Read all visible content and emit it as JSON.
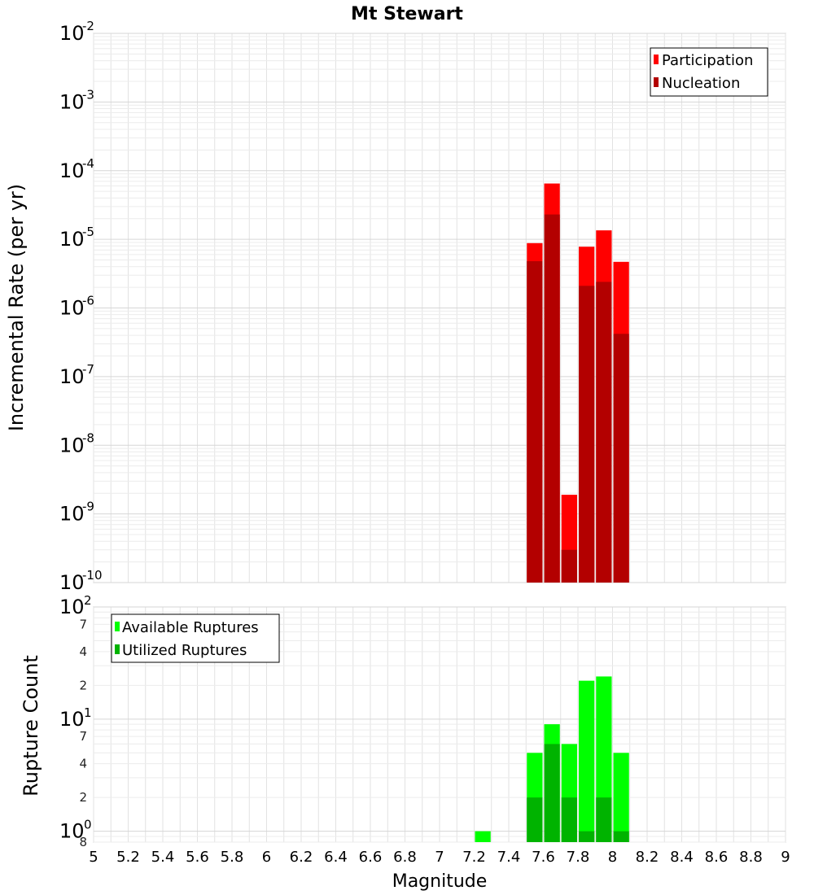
{
  "title": "Mt Stewart",
  "xlabel": "Magnitude",
  "xlim": [
    5,
    9
  ],
  "x_ticks": [
    "5",
    "5.2",
    "5.4",
    "5.6",
    "5.8",
    "6",
    "6.2",
    "6.4",
    "6.6",
    "6.8",
    "7",
    "7.2",
    "7.4",
    "7.6",
    "7.8",
    "8",
    "8.2",
    "8.4",
    "8.6",
    "8.8",
    "9"
  ],
  "colors": {
    "participation": "#ff0000",
    "nucleation": "#b30000",
    "available": "#00ff00",
    "utilized": "#00b300"
  },
  "chart_data": [
    {
      "type": "bar",
      "panel": "top",
      "ylabel": "Incremental Rate (per yr)",
      "yscale": "log",
      "ylim": [
        1e-10,
        0.01
      ],
      "y_ticks": [
        {
          "base": "10",
          "exp": "-2"
        },
        {
          "base": "10",
          "exp": "-3"
        },
        {
          "base": "10",
          "exp": "-4"
        },
        {
          "base": "10",
          "exp": "-5"
        },
        {
          "base": "10",
          "exp": "-6"
        },
        {
          "base": "10",
          "exp": "-7"
        },
        {
          "base": "10",
          "exp": "-8"
        },
        {
          "base": "10",
          "exp": "-9"
        },
        {
          "base": "10",
          "exp": "-10"
        }
      ],
      "legend": [
        "Participation",
        "Nucleation"
      ],
      "legend_position": "top-right",
      "bin_width": 0.1,
      "x": [
        7.55,
        7.65,
        7.75,
        7.85,
        7.95,
        8.05
      ],
      "series": [
        {
          "name": "Participation",
          "values": [
            8.8e-06,
            6.5e-05,
            1.9e-09,
            7.8e-06,
            1.35e-05,
            4.7e-06
          ]
        },
        {
          "name": "Nucleation",
          "values": [
            4.8e-06,
            2.3e-05,
            3e-10,
            2.1e-06,
            2.4e-06,
            4.2e-07
          ]
        }
      ]
    },
    {
      "type": "bar",
      "panel": "bottom",
      "ylabel": "Rupture Count",
      "yscale": "log",
      "ylim": [
        0.8,
        100
      ],
      "y_ticks": [
        {
          "value": 100,
          "base": "10",
          "exp": "2"
        },
        {
          "value": 10,
          "base": "10",
          "exp": "1"
        },
        {
          "value": 1,
          "base": "10",
          "exp": "0"
        }
      ],
      "y_minor_labels": [
        {
          "value": 70,
          "label": "7"
        },
        {
          "value": 40,
          "label": "4"
        },
        {
          "value": 20,
          "label": "2"
        },
        {
          "value": 7,
          "label": "7"
        },
        {
          "value": 4,
          "label": "4"
        },
        {
          "value": 2,
          "label": "2"
        },
        {
          "value": 0.8,
          "label": "8"
        }
      ],
      "legend": [
        "Available Ruptures",
        "Utilized Ruptures"
      ],
      "legend_position": "top-left",
      "bin_width": 0.1,
      "x": [
        7.25,
        7.55,
        7.65,
        7.75,
        7.85,
        7.95,
        8.05
      ],
      "series": [
        {
          "name": "Available Ruptures",
          "values": [
            1,
            5,
            9,
            6,
            22,
            24,
            5
          ]
        },
        {
          "name": "Utilized Ruptures",
          "values": [
            0,
            2,
            6,
            2,
            1,
            2,
            1
          ]
        }
      ]
    }
  ]
}
